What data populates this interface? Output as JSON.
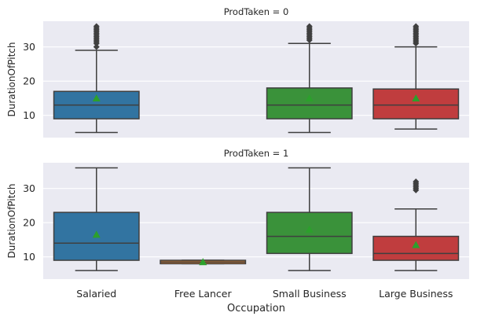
{
  "chart_data": {
    "type": "box",
    "xlabel": "Occupation",
    "ylabel": "DurationOfPitch",
    "categories": [
      "Salaried",
      "Free Lancer",
      "Small Business",
      "Large Business"
    ],
    "colors": [
      "#3274a1",
      "#e1812c",
      "#3a923a",
      "#c03d3e"
    ],
    "mean_marker_color": "#2ca02c",
    "ylim": [
      3.5,
      37.5
    ],
    "yticks": [
      10,
      20,
      30
    ],
    "grid": true,
    "panels": [
      {
        "title": "ProdTaken = 0",
        "boxes": [
          {
            "category": "Salaried",
            "whisker_low": 5,
            "q1": 9,
            "median": 13,
            "q3": 17,
            "whisker_high": 29,
            "mean": 15,
            "outliers": [
              30,
              31,
              31.5,
              32,
              32.5,
              33,
              33.5,
              34,
              34.5,
              35,
              35.5,
              36
            ]
          },
          null,
          {
            "category": "Small Business",
            "whisker_low": 5,
            "q1": 9,
            "median": 13,
            "q3": 18,
            "whisker_high": 31,
            "mean": 15,
            "outliers": [
              32,
              32.5,
              33,
              33.5,
              34,
              34.5,
              35,
              35.5,
              36
            ]
          },
          {
            "category": "Large Business",
            "whisker_low": 6,
            "q1": 9,
            "median": 13,
            "q3": 17.7,
            "whisker_high": 30,
            "mean": 15,
            "outliers": [
              31,
              31.5,
              32,
              32.5,
              33,
              33.5,
              34,
              34.5,
              35,
              35.5,
              36
            ]
          }
        ]
      },
      {
        "title": "ProdTaken = 1",
        "boxes": [
          {
            "category": "Salaried",
            "whisker_low": 6,
            "q1": 9,
            "median": 14,
            "q3": 23,
            "whisker_high": 36,
            "mean": 16.5,
            "outliers": []
          },
          {
            "category": "Free Lancer",
            "whisker_low": 8,
            "q1": 8,
            "median": 8.5,
            "q3": 9,
            "whisker_high": 9,
            "mean": 8.5,
            "outliers": []
          },
          {
            "category": "Small Business",
            "whisker_low": 6,
            "q1": 11,
            "median": 16,
            "q3": 23,
            "whisker_high": 36,
            "mean": 18,
            "outliers": []
          },
          {
            "category": "Large Business",
            "whisker_low": 6,
            "q1": 9,
            "median": 11,
            "q3": 16,
            "whisker_high": 24,
            "mean": 13.5,
            "outliers": [
              29.5,
              30,
              30.5,
              31,
              31.5,
              32
            ]
          }
        ]
      }
    ]
  }
}
